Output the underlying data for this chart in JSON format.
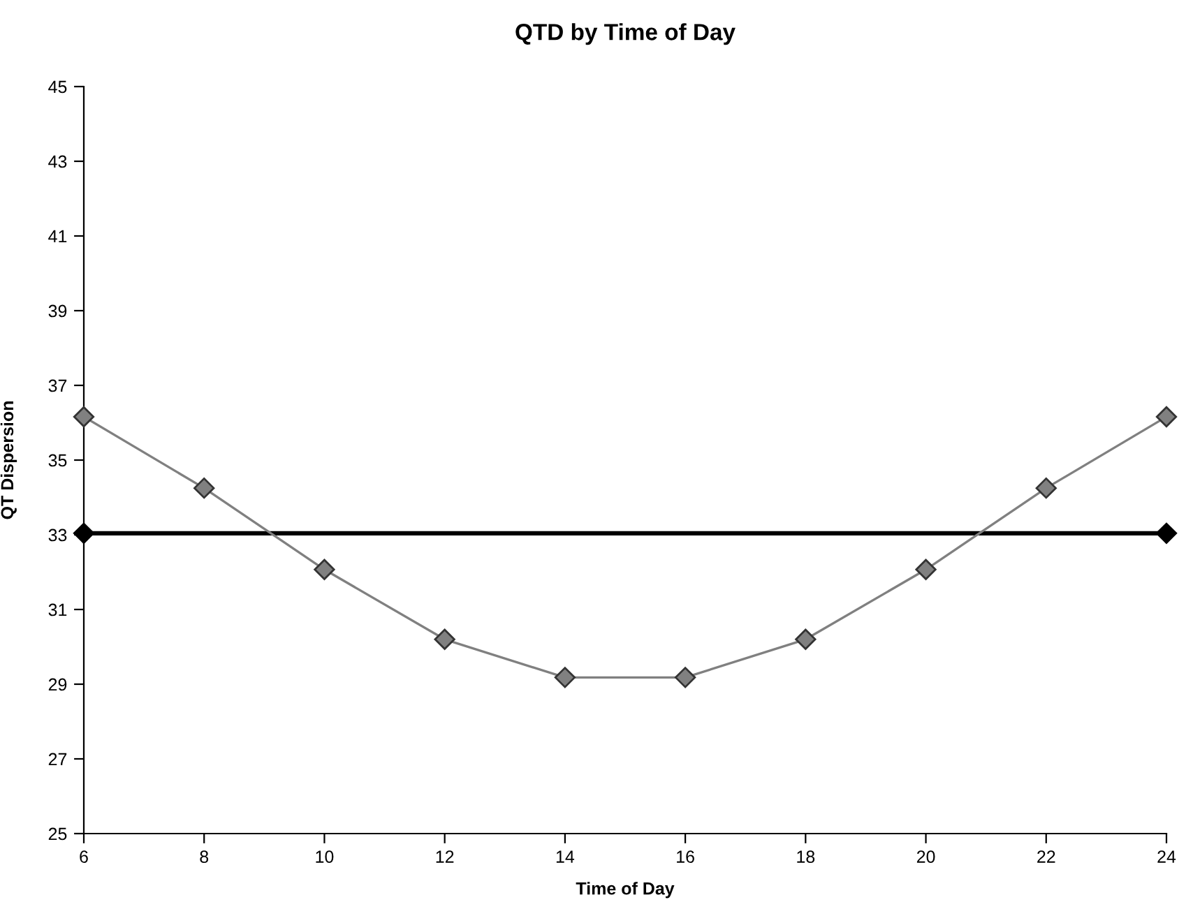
{
  "chart_data": {
    "type": "line",
    "title": "QTD by Time of Day",
    "xlabel": "Time of Day",
    "ylabel": "QT Dispersion",
    "x": [
      6,
      8,
      10,
      12,
      14,
      16,
      18,
      20,
      22,
      24
    ],
    "series": [
      {
        "color": "#808080",
        "values": [
          36.16,
          34.25,
          32.07,
          30.2,
          29.18,
          29.18,
          30.2,
          32.07,
          34.25,
          36.16
        ]
      },
      {
        "color": "#000000",
        "x": [
          6,
          24
        ],
        "values": [
          33.04,
          33.04
        ]
      }
    ],
    "xlim": [
      6,
      24
    ],
    "xticks": [
      6,
      8,
      10,
      12,
      14,
      16,
      18,
      20,
      22,
      24
    ],
    "ylim": [
      25,
      45
    ],
    "yticks": [
      25,
      27,
      29,
      31,
      33,
      35,
      37,
      39,
      41,
      43,
      45
    ],
    "grid": false,
    "legend": false,
    "marker": "diamond",
    "line_style": "solid"
  }
}
